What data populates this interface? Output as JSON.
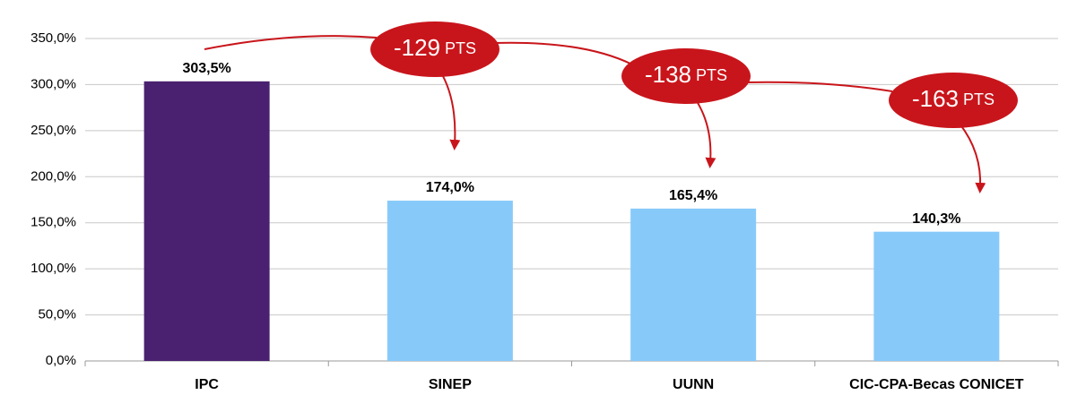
{
  "chart_data": {
    "type": "bar",
    "categories": [
      "IPC",
      "SINEP",
      "UUNN",
      "CIC-CPA-Becas CONICET"
    ],
    "values": [
      303.5,
      174.0,
      165.4,
      140.3
    ],
    "value_labels": [
      "303,5%",
      "174,0%",
      "165,4%",
      "140,3%"
    ],
    "colors": [
      "#4a2170",
      "#87cafa",
      "#87cafa",
      "#87cafa"
    ],
    "ylim": [
      0,
      350
    ],
    "yticks": [
      {
        "value": 0,
        "label": "0,0%"
      },
      {
        "value": 50,
        "label": "50,0%"
      },
      {
        "value": 100,
        "label": "100,0%"
      },
      {
        "value": 150,
        "label": "150,0%"
      },
      {
        "value": 200,
        "label": "200,0%"
      },
      {
        "value": 250,
        "label": "250,0%"
      },
      {
        "value": 300,
        "label": "300,0%"
      },
      {
        "value": 350,
        "label": "350,0%"
      }
    ],
    "grid": true,
    "annotations": [
      {
        "text": "-129",
        "suffix": "PTS"
      },
      {
        "text": "-138",
        "suffix": "PTS"
      },
      {
        "text": "-163",
        "suffix": "PTS"
      }
    ]
  }
}
